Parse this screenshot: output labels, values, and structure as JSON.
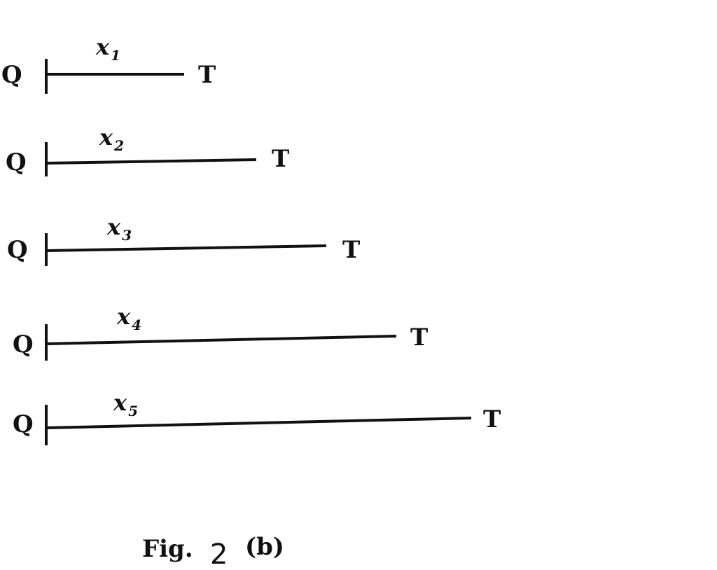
{
  "segments": [
    {
      "start_label": "Q",
      "end_label": "T",
      "var": "x",
      "sub": "1"
    },
    {
      "start_label": "Q",
      "end_label": "T",
      "var": "x",
      "sub": "2"
    },
    {
      "start_label": "Q",
      "end_label": "T",
      "var": "x",
      "sub": "3"
    },
    {
      "start_label": "Q",
      "end_label": "T",
      "var": "x",
      "sub": "4"
    },
    {
      "start_label": "Q",
      "end_label": "T",
      "var": "x",
      "sub": "5"
    }
  ],
  "caption": {
    "prefix": "Fig.",
    "number": "2",
    "suffix": "(b)"
  }
}
